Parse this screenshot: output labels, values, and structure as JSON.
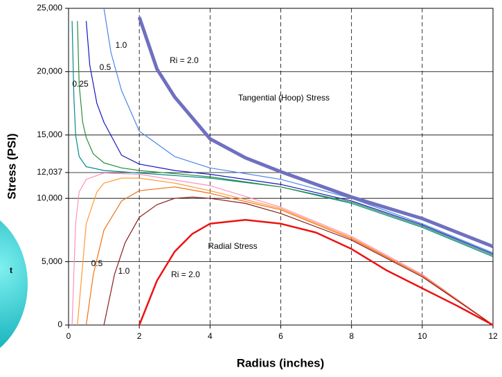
{
  "chart_data": {
    "type": "line",
    "x_label": "Radius  (inches)",
    "y_label": "Stress  (PSI)",
    "xlim": [
      0,
      12
    ],
    "xticks": [
      0,
      2,
      4,
      6,
      8,
      10,
      12
    ],
    "ylim": [
      0,
      25000
    ],
    "yticks": [
      0,
      {
        "value": 5000,
        "label": "5,000"
      },
      {
        "value": 10000,
        "label": "10,000"
      },
      {
        "value": 12037,
        "label": "12,037"
      },
      {
        "value": 15000,
        "label": "15,000"
      },
      {
        "value": 20000,
        "label": "20,000"
      },
      {
        "value": 25000,
        "label": "25,000"
      }
    ],
    "grid": true,
    "annotations": [
      "Tangential (Hoop) Stress",
      "Radial Stress"
    ],
    "figure_label": "t",
    "series": [
      {
        "color": "#008a8a",
        "width": 1.2,
        "x": [
          0.1,
          0.15,
          0.2,
          0.3,
          0.5,
          1,
          2,
          4,
          6,
          8,
          10,
          12
        ],
        "values": [
          24000,
          18000,
          15000,
          13300,
          12500,
          12200,
          12000,
          11600,
          10900,
          9600,
          7700,
          5400
        ]
      },
      {
        "color": "#2a8a3a",
        "width": 1.2,
        "label": "0.25",
        "x": [
          0.25,
          0.3,
          0.4,
          0.5,
          0.7,
          1,
          1.5,
          2,
          4,
          6,
          8,
          10,
          12
        ],
        "values": [
          24000,
          19000,
          16000,
          14800,
          13500,
          12800,
          12400,
          12200,
          11700,
          10900,
          9700,
          7800,
          5500
        ]
      },
      {
        "color": "#1414c0",
        "width": 1.2,
        "label": "0.5",
        "x": [
          0.5,
          0.6,
          0.8,
          1,
          1.5,
          2,
          3,
          4,
          6,
          8,
          10,
          12
        ],
        "values": [
          24000,
          20500,
          17500,
          16000,
          13400,
          12700,
          12200,
          11900,
          11100,
          9800,
          7900,
          5600
        ]
      },
      {
        "color": "#4a86e8",
        "width": 1.2,
        "label": "1.0",
        "x": [
          1,
          1.2,
          1.5,
          2,
          3,
          4,
          6,
          8,
          10,
          12
        ],
        "values": [
          25000,
          21500,
          18500,
          15300,
          13300,
          12400,
          11500,
          10000,
          8000,
          5700
        ]
      },
      {
        "color": "#7070c0",
        "width": 5,
        "label": "Ri = 2.0",
        "x": [
          2,
          2.5,
          3,
          4,
          5,
          6,
          8,
          10,
          12
        ],
        "values": [
          24300,
          20200,
          18000,
          14700,
          13200,
          12100,
          10100,
          8400,
          6200
        ]
      },
      {
        "color": "#ff90c0",
        "width": 1.2,
        "x": [
          0.1,
          0.2,
          0.3,
          0.5,
          1,
          2,
          4,
          6,
          8,
          10,
          12
        ],
        "values": [
          0,
          8000,
          10500,
          11500,
          12000,
          11900,
          11000,
          9300,
          7000,
          4000,
          0
        ]
      },
      {
        "color": "#ff9933",
        "width": 1.2,
        "x": [
          0.25,
          0.5,
          0.8,
          1,
          1.5,
          2,
          3,
          4,
          6,
          8,
          10,
          12
        ],
        "values": [
          0,
          8000,
          10500,
          11200,
          11600,
          11600,
          11200,
          10600,
          9200,
          6900,
          3900,
          0
        ]
      },
      {
        "color": "#f07010",
        "width": 1.2,
        "label": "0.5",
        "x": [
          0.5,
          0.7,
          1,
          1.5,
          2,
          3,
          4,
          6,
          8,
          10,
          12
        ],
        "values": [
          0,
          4000,
          7500,
          9800,
          10600,
          10900,
          10400,
          9100,
          6800,
          3900,
          0
        ]
      },
      {
        "color": "#8b1a1a",
        "width": 1.2,
        "label": "1.0",
        "x": [
          1,
          1.3,
          1.6,
          2,
          2.5,
          3,
          3.5,
          4,
          5,
          6,
          8,
          10,
          12
        ],
        "values": [
          0,
          4000,
          6500,
          8500,
          9500,
          10000,
          10100,
          10000,
          9600,
          8800,
          6700,
          3800,
          0
        ]
      },
      {
        "color": "#ee1111",
        "width": 2.5,
        "label": "Ri = 2.0",
        "x": [
          2,
          2.5,
          3,
          3.5,
          4,
          5,
          6,
          7,
          8,
          9,
          10,
          11,
          12
        ],
        "values": [
          0,
          3500,
          5800,
          7200,
          8000,
          8300,
          8000,
          7300,
          6000,
          4300,
          2900,
          1500,
          0
        ]
      }
    ]
  }
}
